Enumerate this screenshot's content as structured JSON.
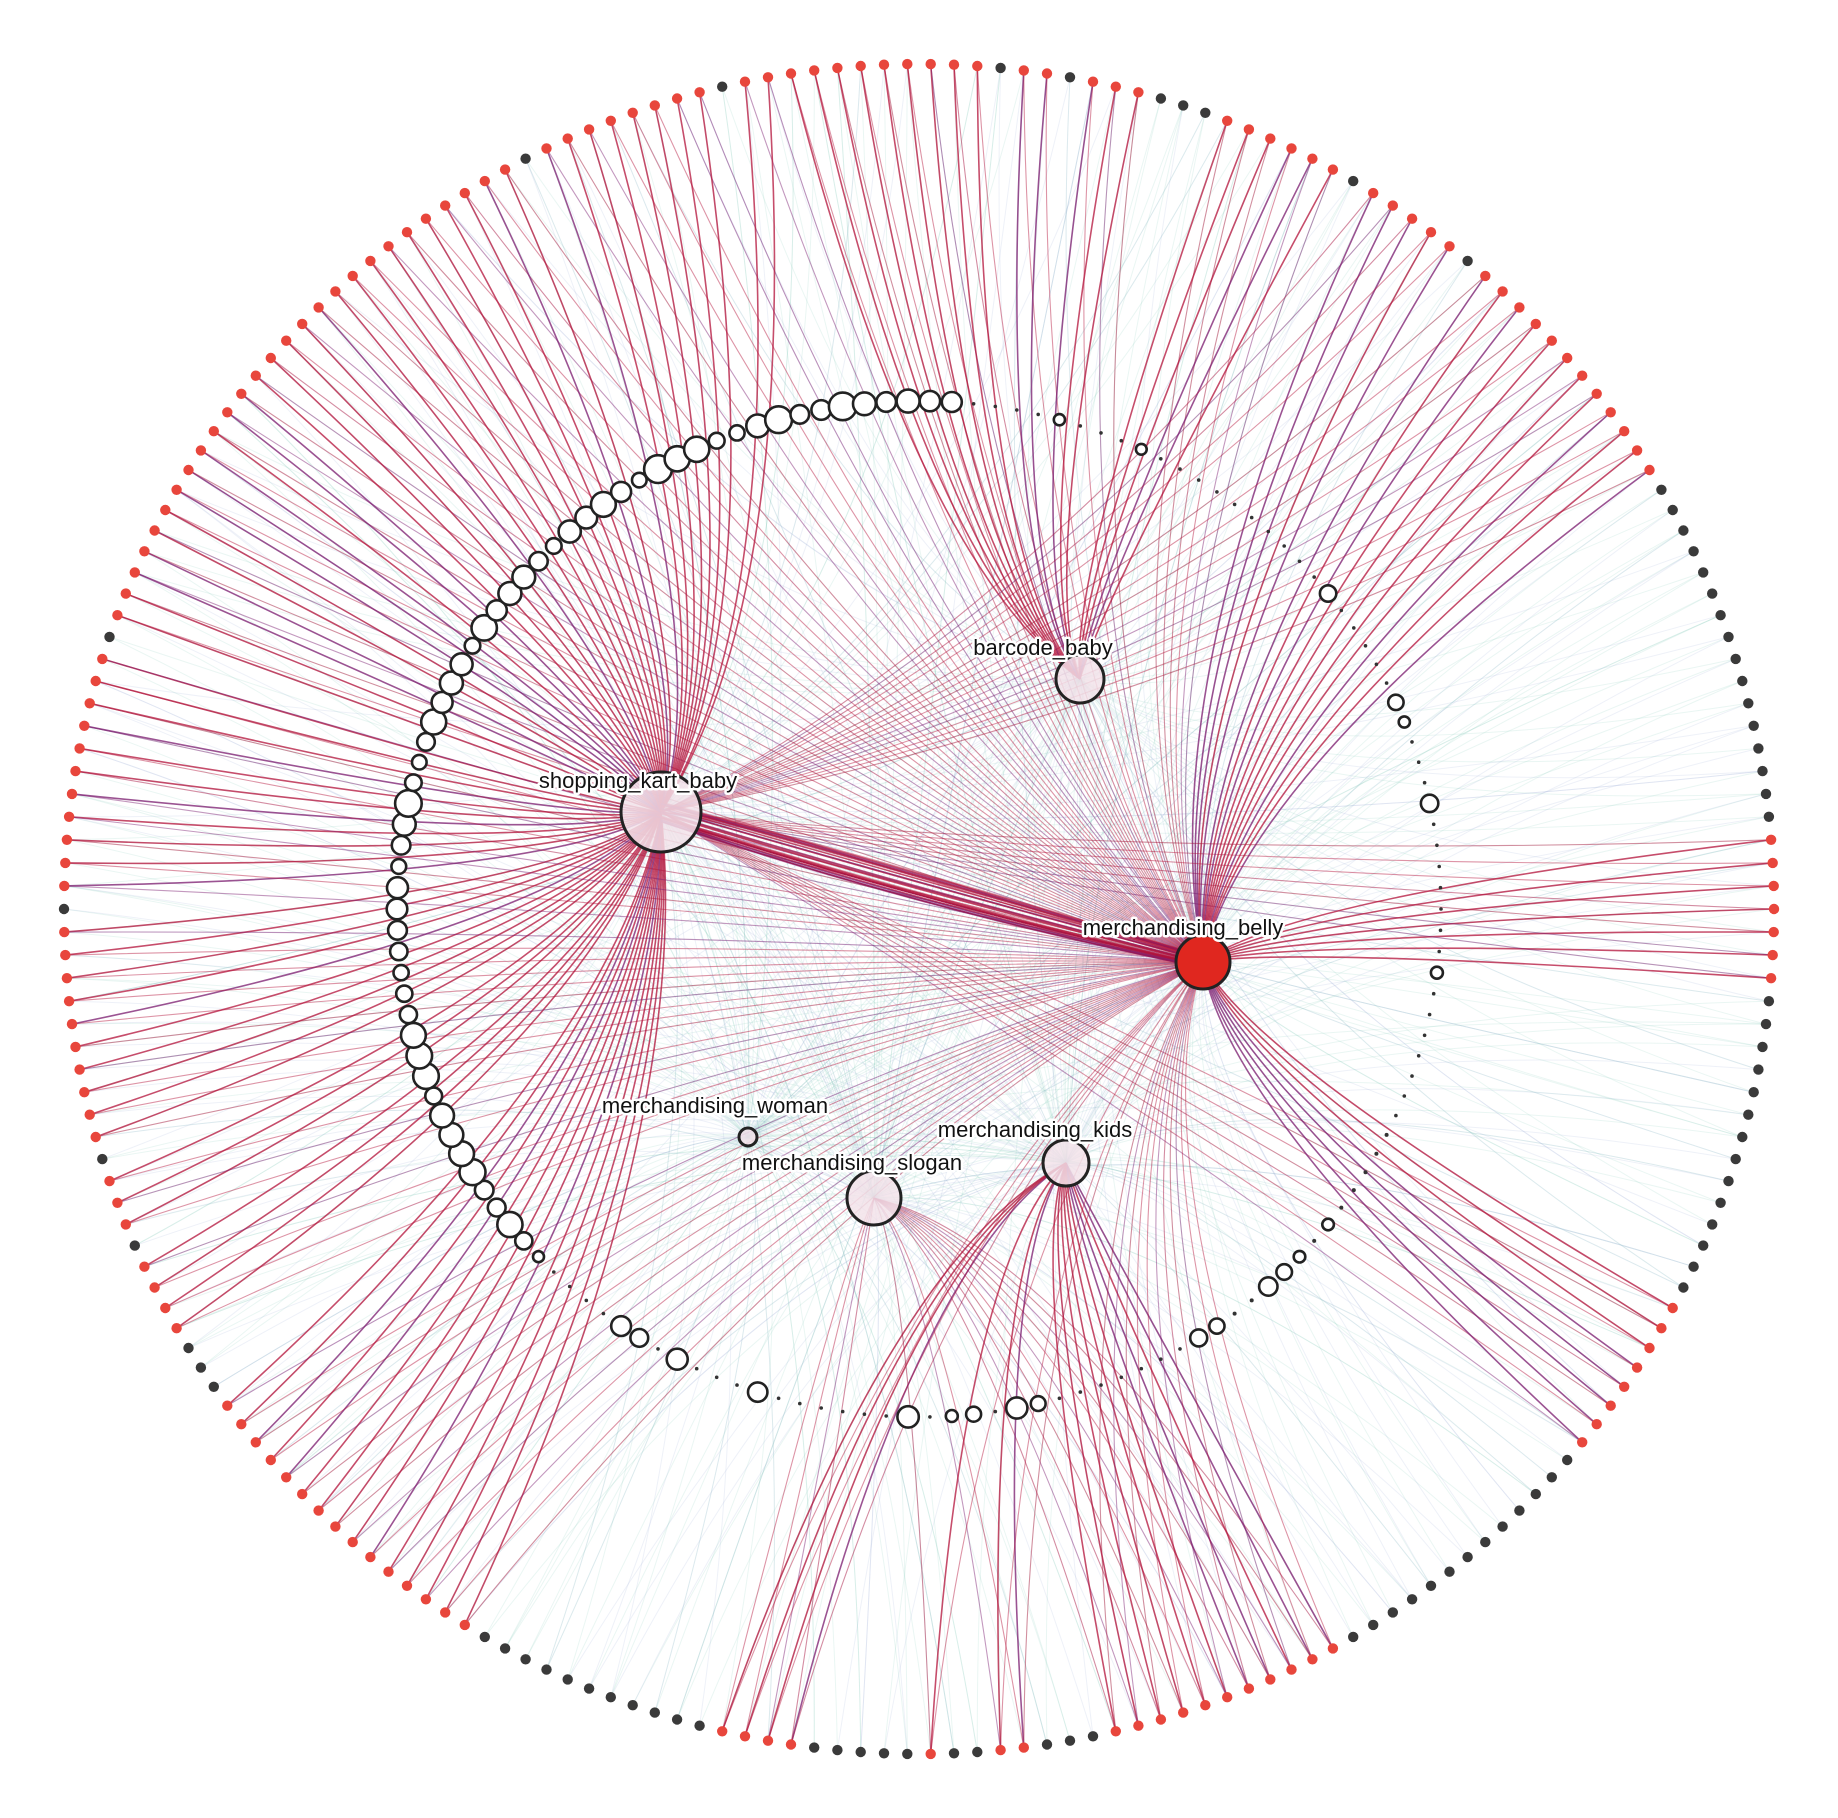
{
  "colors": {
    "background": "#ffffff",
    "leaf_active": "#e8463c",
    "leaf_inactive": "#3a3a3a",
    "edge_strong": "#b3123a",
    "edge_purple": "#7a1a6e",
    "edge_faint": "#8ccfbf",
    "edge_blue": "#9fb2d9",
    "hub_fill": "#f3e3ea",
    "hub_active_fill": "#e0271f",
    "node_stroke": "#222222"
  },
  "hubs": [
    {
      "id": "shopping_kart_baby",
      "label": "shopping_kart_baby",
      "active": false
    },
    {
      "id": "barcode_baby",
      "label": "barcode_baby",
      "active": false
    },
    {
      "id": "merchandising_belly",
      "label": "merchandising_belly",
      "active": true
    },
    {
      "id": "merchandising_woman",
      "label": "merchandising_woman",
      "active": false
    },
    {
      "id": "merchandising_slogan",
      "label": "merchandising_slogan",
      "active": false
    },
    {
      "id": "merchandising_kids",
      "label": "merchandising_kids",
      "active": false
    }
  ],
  "legend": null
}
